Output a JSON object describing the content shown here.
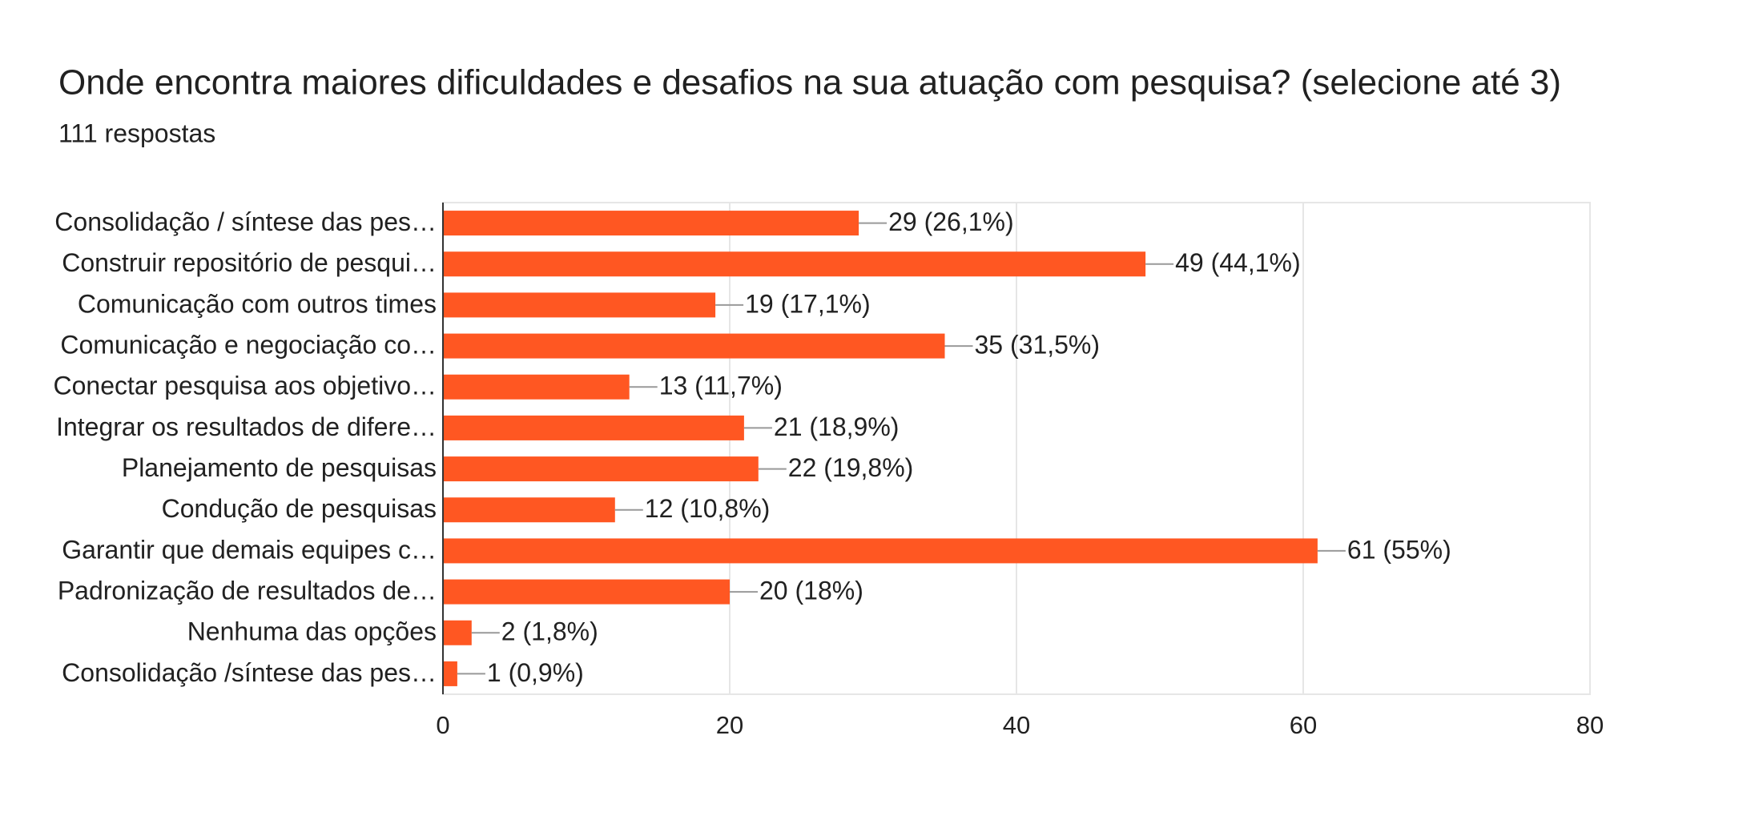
{
  "chart_data": {
    "type": "bar",
    "orientation": "horizontal",
    "title": "Onde encontra maiores dificuldades e desafios na sua atuação com pesquisa? (selecione até 3)",
    "subtitle": "111 respostas",
    "categories": [
      "Consolidação / síntese das pes…",
      "Construir repositório de pesqui…",
      "Comunicação com outros times",
      "Comunicação e negociação co…",
      "Conectar pesquisa aos objetivo…",
      "Integrar os resultados de difere…",
      "Planejamento de pesquisas",
      "Condução de pesquisas",
      "Garantir que demais equipes c…",
      "Padronização de resultados de…",
      "Nenhuma das opções",
      "Consolidação /síntese das pes…"
    ],
    "values": [
      29,
      49,
      19,
      35,
      13,
      21,
      22,
      12,
      61,
      20,
      2,
      1
    ],
    "value_labels": [
      "29 (26,1%)",
      "49 (44,1%)",
      "19 (17,1%)",
      "35 (31,5%)",
      "13 (11,7%)",
      "21 (18,9%)",
      "22 (19,8%)",
      "12 (10,8%)",
      "61 (55%)",
      "20 (18%)",
      "2 (1,8%)",
      "1 (0,9%)"
    ],
    "color": "#ff5722",
    "xlim": [
      0,
      80
    ],
    "xticks": [
      0,
      20,
      40,
      60,
      80
    ],
    "grid": true
  }
}
